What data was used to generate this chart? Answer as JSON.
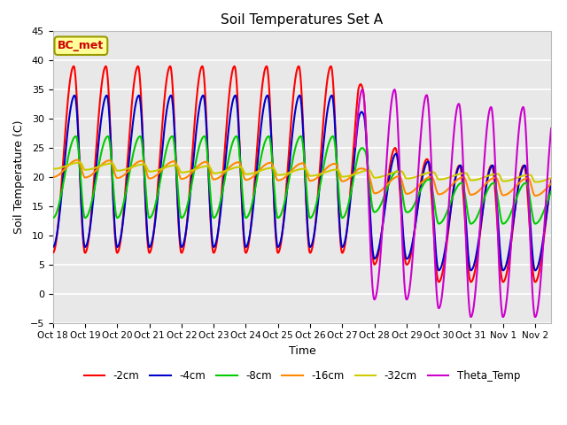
{
  "title": "Soil Temperatures Set A",
  "xlabel": "Time",
  "ylabel": "Soil Temperature (C)",
  "ylim": [
    -5,
    45
  ],
  "yticks": [
    -5,
    0,
    5,
    10,
    15,
    20,
    25,
    30,
    35,
    40,
    45
  ],
  "xlim": [
    0,
    15.5
  ],
  "xtick_labels": [
    "Oct 18",
    "Oct 19",
    "Oct 20",
    "Oct 21",
    "Oct 22",
    "Oct 23",
    "Oct 24",
    "Oct 25",
    "Oct 26",
    "Oct 27",
    "Oct 28",
    "Oct 29",
    "Oct 30",
    "Oct 31",
    "Nov 1",
    "Nov 2"
  ],
  "colors": {
    "-2cm": "#ff0000",
    "-4cm": "#0000cc",
    "-8cm": "#00cc00",
    "-16cm": "#ff8800",
    "-32cm": "#cccc00",
    "Theta_Temp": "#cc00cc"
  },
  "annotation_text": "BC_met",
  "annotation_color": "#cc0000",
  "annotation_bg": "#ffff99",
  "plot_bg": "#e8e8e8",
  "figsize": [
    6.4,
    4.8
  ],
  "dpi": 100
}
